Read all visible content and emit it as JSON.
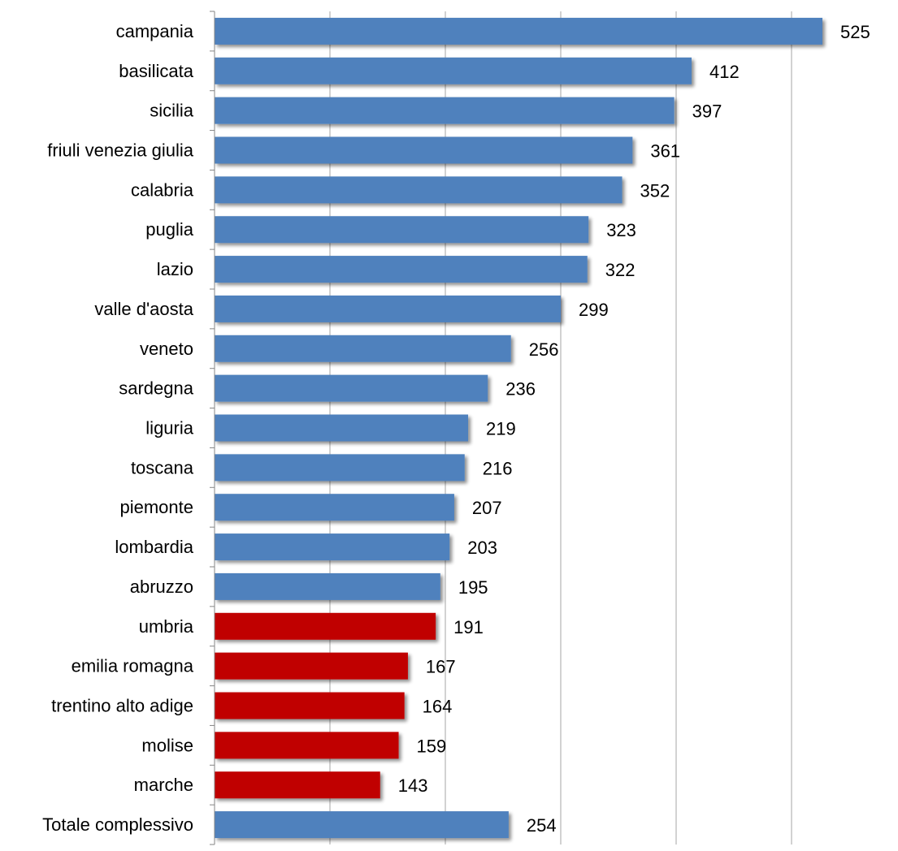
{
  "chart_data": {
    "type": "bar",
    "orientation": "horizontal",
    "title": "",
    "xlabel": "",
    "ylabel": "",
    "xlim": [
      0,
      525
    ],
    "grid": true,
    "legend": "none",
    "categories": [
      "campania",
      "basilicata",
      "sicilia",
      "friuli venezia giulia",
      "calabria",
      "puglia",
      "lazio",
      "valle d'aosta",
      "veneto",
      "sardegna",
      "liguria",
      "toscana",
      "piemonte",
      "lombardia",
      "abruzzo",
      "umbria",
      "emilia romagna",
      "trentino alto adige",
      "molise",
      "marche",
      "Totale complessivo"
    ],
    "values": [
      525,
      412,
      397,
      361,
      352,
      323,
      322,
      299,
      256,
      236,
      219,
      216,
      207,
      203,
      195,
      191,
      167,
      164,
      159,
      143,
      254
    ],
    "bar_colors": [
      "#4F81BD",
      "#4F81BD",
      "#4F81BD",
      "#4F81BD",
      "#4F81BD",
      "#4F81BD",
      "#4F81BD",
      "#4F81BD",
      "#4F81BD",
      "#4F81BD",
      "#4F81BD",
      "#4F81BD",
      "#4F81BD",
      "#4F81BD",
      "#4F81BD",
      "#C00000",
      "#C00000",
      "#C00000",
      "#C00000",
      "#C00000",
      "#4F81BD"
    ],
    "colors": {
      "above_total": "#4F81BD",
      "below_total": "#C00000",
      "gridline": "#A6A6A6",
      "axis": "#868686",
      "text": "#000000"
    }
  }
}
